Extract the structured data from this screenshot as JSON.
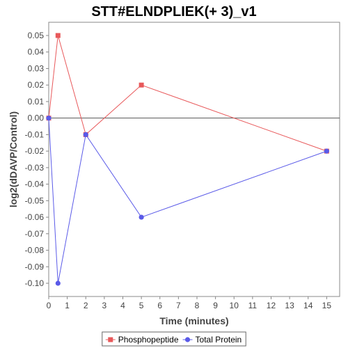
{
  "chart_data": {
    "type": "line",
    "title": "STT#ELNDPLIEK(+ 3)_v1",
    "xlabel": "Time (minutes)",
    "ylabel": "log2(dDAVP/Control)",
    "xlim": [
      0,
      15.7
    ],
    "ylim": [
      -0.108,
      0.058
    ],
    "x_ticks": [
      0,
      1,
      2,
      3,
      4,
      5,
      6,
      7,
      8,
      9,
      10,
      11,
      12,
      13,
      14,
      15
    ],
    "y_ticks": [
      0.05,
      0.04,
      0.03,
      0.02,
      0.01,
      0.0,
      -0.01,
      -0.02,
      -0.03,
      -0.04,
      -0.05,
      -0.06,
      -0.07,
      -0.08,
      -0.09,
      -0.1
    ],
    "y_tick_labels": [
      "0.05",
      "0.04",
      "0.03",
      "0.02",
      "0.01",
      "0.00",
      "-0.01",
      "-0.02",
      "-0.03",
      "-0.04",
      "-0.05",
      "-0.06",
      "-0.07",
      "-0.08",
      "-0.09",
      "-0.10"
    ],
    "zero_line": true,
    "grid": false,
    "legend_position": "bottom",
    "series": [
      {
        "name": "Phosphopeptide",
        "color": "#e8585a",
        "marker": "square",
        "x": [
          0,
          0.5,
          2,
          5,
          15
        ],
        "y": [
          0.0,
          0.05,
          -0.01,
          0.02,
          -0.02
        ]
      },
      {
        "name": "Total Protein",
        "color": "#5a5ae8",
        "marker": "circle",
        "x": [
          0,
          0.5,
          2,
          5,
          15
        ],
        "y": [
          0.0,
          -0.1,
          -0.01,
          -0.06,
          -0.02
        ]
      }
    ]
  }
}
